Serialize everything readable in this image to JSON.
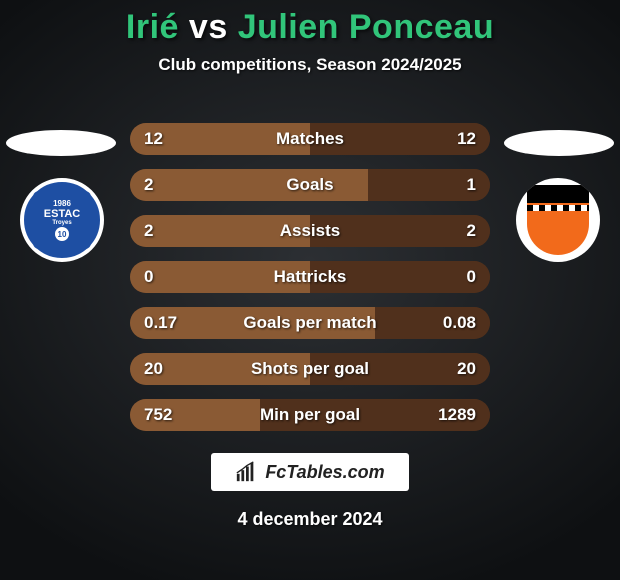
{
  "title": {
    "player1": "Irié",
    "vs": "vs",
    "player2": "Julien Ponceau",
    "player1_color": "#31c57a",
    "vs_color": "#ffffff",
    "player2_color": "#31c57a"
  },
  "subtitle": "Club competitions, Season 2024/2025",
  "background": {
    "base_color": "#2c2f33",
    "vignette_color": "#0e1012"
  },
  "player_left": {
    "club_name": "ESTAC Troyes",
    "badge_year": "1986",
    "badge_text": "ESTAC",
    "badge_sub": "Troyes",
    "badge_number": "10",
    "badge_primary": "#1e4fa3",
    "badge_secondary": "#ffffff"
  },
  "player_right": {
    "club_name": "FC Lorient",
    "badge_primary": "#f26a1b",
    "badge_secondary": "#000000",
    "badge_tertiary": "#ffffff"
  },
  "stats": {
    "row_bg_left": "#8a5a34",
    "row_bg_right": "#50301c",
    "text_color": "#ffffff",
    "fontsize": 17,
    "rows": [
      {
        "label": "Matches",
        "left": "12",
        "right": "12",
        "left_pct": 50,
        "right_pct": 50
      },
      {
        "label": "Goals",
        "left": "2",
        "right": "1",
        "left_pct": 66,
        "right_pct": 34
      },
      {
        "label": "Assists",
        "left": "2",
        "right": "2",
        "left_pct": 50,
        "right_pct": 50
      },
      {
        "label": "Hattricks",
        "left": "0",
        "right": "0",
        "left_pct": 50,
        "right_pct": 50
      },
      {
        "label": "Goals per match",
        "left": "0.17",
        "right": "0.08",
        "left_pct": 68,
        "right_pct": 32
      },
      {
        "label": "Shots per goal",
        "left": "20",
        "right": "20",
        "left_pct": 50,
        "right_pct": 50
      },
      {
        "label": "Min per goal",
        "left": "752",
        "right": "1289",
        "left_pct": 36,
        "right_pct": 64
      }
    ]
  },
  "branding": "FcTables.com",
  "date": "4 december 2024"
}
